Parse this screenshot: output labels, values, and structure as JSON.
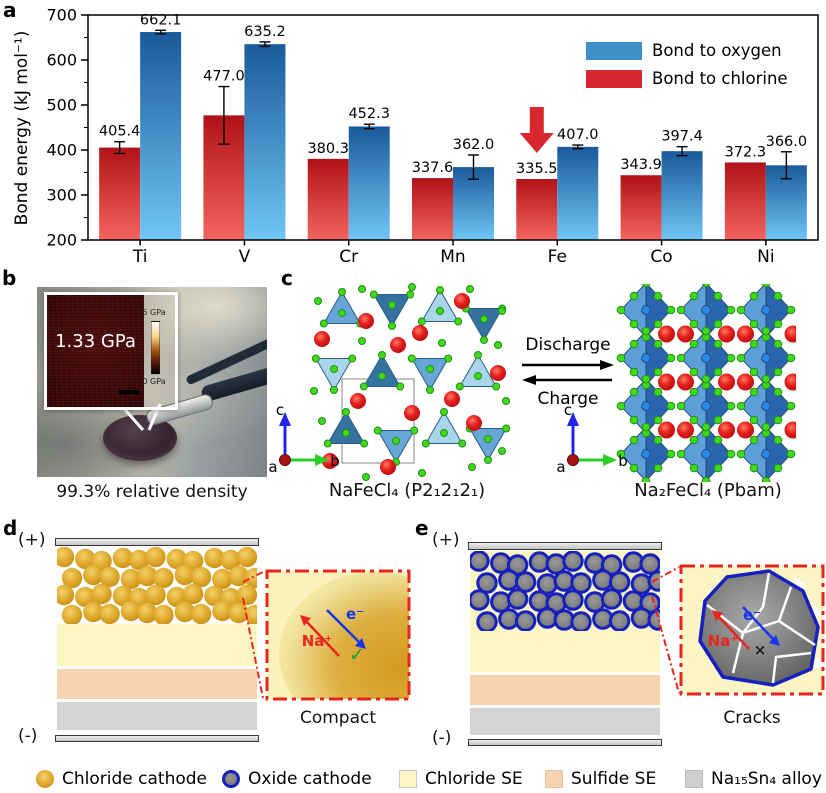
{
  "colors": {
    "oxygen_blue": "#3d8ec9",
    "chlorine_red": "#d7282f",
    "chloride_se": "#fcf6c3",
    "sulfide_se": "#f8d2ae",
    "alloy_gray": "#d4d4d4",
    "oxide_border_blue": "#1520bf",
    "inset_border_red": "#e8251d"
  },
  "chart_data": {
    "type": "bar",
    "title": "",
    "ylabel": "Bond energy (kJ mol⁻¹)",
    "ylim": [
      200,
      700
    ],
    "yticks": [
      200,
      300,
      400,
      500,
      600,
      700
    ],
    "categories": [
      "Ti",
      "V",
      "Cr",
      "Mn",
      "Fe",
      "Co",
      "Ni"
    ],
    "series": [
      {
        "name": "Bond to chlorine",
        "color": "#d7282f",
        "gradient": [
          "#b01217",
          "#f4655f"
        ],
        "values": [
          405.4,
          477.0,
          380.3,
          337.6,
          335.5,
          343.9,
          372.3
        ],
        "errors": [
          13,
          64,
          0,
          0,
          0,
          0,
          0
        ]
      },
      {
        "name": "Bond to oxygen",
        "color": "#3d8ec9",
        "gradient": [
          "#1a5a9a",
          "#70c6f6"
        ],
        "values": [
          662.1,
          635.2,
          452.3,
          362.0,
          407.0,
          397.4,
          366.0
        ],
        "errors": [
          4,
          5,
          5,
          27,
          4,
          10,
          30
        ]
      }
    ],
    "legend_order": [
      "Bond to oxygen",
      "Bond to chlorine"
    ],
    "legend_position": "top-right",
    "grid": false,
    "annotation": {
      "type": "down-arrow",
      "category": "Fe",
      "series": "Bond to chlorine",
      "color": "#d7282f"
    }
  },
  "panels": {
    "a": {
      "label": "a"
    },
    "b": {
      "label": "b",
      "inset_value": "1.33 GPa",
      "scale_max": "5 GPa",
      "scale_min": "0 GPa",
      "caption": "99.3% relative density"
    },
    "c": {
      "label": "c",
      "forward": "Discharge",
      "backward": "Charge",
      "left_formula": "NaFeCl₄ (P2₁2₁2₁)",
      "right_formula": "Na₂FeCl₄ (Pbam)",
      "axes": {
        "a": "a",
        "b": "b",
        "c": "c"
      }
    },
    "d": {
      "label": "d",
      "positive": "(+)",
      "negative": "(-)",
      "inset": {
        "na": "Na⁺",
        "e": "e⁻",
        "check": "✓",
        "caption": "Compact"
      }
    },
    "e": {
      "label": "e",
      "positive": "(+)",
      "negative": "(-)",
      "inset": {
        "na": "Na⁺",
        "e": "e⁻",
        "cross": "×",
        "caption": "Cracks"
      }
    }
  },
  "legend": {
    "items": [
      {
        "swatch": "chloride-cathode",
        "label": "Chloride cathode"
      },
      {
        "swatch": "oxide-cathode",
        "label": "Oxide cathode"
      },
      {
        "swatch": "chloride-se",
        "label": "Chloride SE"
      },
      {
        "swatch": "sulfide-se",
        "label": "Sulfide SE"
      },
      {
        "swatch": "na15sn4-alloy",
        "label": "Na₁₅Sn₄ alloy"
      }
    ]
  }
}
